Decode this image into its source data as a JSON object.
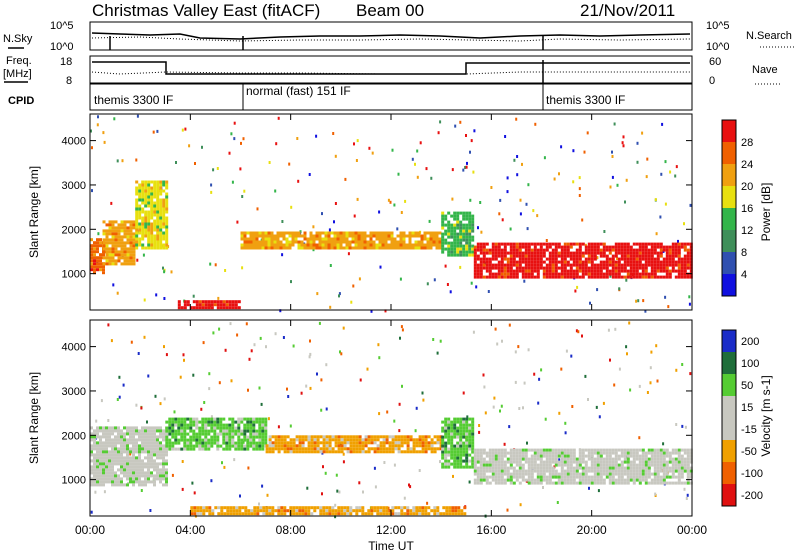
{
  "header": {
    "title": "Christmas Valley East (fitACF)",
    "beam": "Beam 00",
    "date": "21/Nov/2011"
  },
  "noise_panel": {
    "left_label": "N.Sky",
    "right_label": "N.Search",
    "tick_hi": "10^5",
    "tick_lo": "10^0"
  },
  "freq_panel": {
    "left_label_1": "Freq.",
    "left_label_2": "[MHz]",
    "right_label": "Nave",
    "left_ticks": [
      "18",
      "8"
    ],
    "right_ticks": [
      "60",
      "0"
    ]
  },
  "cpid": {
    "label": "CPID",
    "segments": [
      {
        "label": "themis 3300 IF",
        "start_hour": 0
      },
      {
        "label": "normal (fast) 151 IF",
        "start_hour": 6
      },
      {
        "label": "themis 3300 IF",
        "start_hour": 18
      }
    ]
  },
  "colors": {
    "power": [
      "#1010e0",
      "#3050b0",
      "#3f8f5a",
      "#33b54a",
      "#e8e010",
      "#f0a010",
      "#f06000",
      "#e81010"
    ],
    "velocity": [
      "#1a2cc8",
      "#1f6e3a",
      "#55cc33",
      "#c8c8c0",
      "#c8c8c0",
      "#f0a000",
      "#f06000",
      "#e01010"
    ]
  },
  "chart_data": [
    {
      "type": "heatmap",
      "parameter": "Power",
      "ylabel": "Slant Range [km]",
      "ylim": [
        180,
        4600
      ],
      "yticks": [
        1000,
        2000,
        3000,
        4000
      ],
      "xlim": [
        0,
        24
      ],
      "colorbar": {
        "label": "Power [dB]",
        "ticks": [
          "4",
          "8",
          "12",
          "16",
          "20",
          "24",
          "28"
        ]
      },
      "bands": [
        {
          "t0": 0.0,
          "t1": 0.5,
          "r0": 1000,
          "r1": 1800,
          "level": 6
        },
        {
          "t0": 0.5,
          "t1": 1.8,
          "r0": 1200,
          "r1": 2200,
          "level": 5
        },
        {
          "t0": 1.8,
          "t1": 3.0,
          "r0": 1600,
          "r1": 3100,
          "level": 4
        },
        {
          "t0": 6.0,
          "t1": 14.0,
          "r0": 1550,
          "r1": 1950,
          "level": 5
        },
        {
          "t0": 14.0,
          "t1": 15.3,
          "r0": 1400,
          "r1": 2400,
          "level": 3
        },
        {
          "t0": 15.3,
          "t1": 24.0,
          "r0": 900,
          "r1": 1700,
          "level": 7
        },
        {
          "t0": 3.5,
          "t1": 6.0,
          "r0": 250,
          "r1": 400,
          "level": 7
        }
      ]
    },
    {
      "type": "heatmap",
      "parameter": "Velocity",
      "ylabel": "Slant Range [km]",
      "xlabel": "Time UT",
      "ylim": [
        180,
        4600
      ],
      "yticks": [
        1000,
        2000,
        3000,
        4000
      ],
      "xlim": [
        0,
        24
      ],
      "xticks": [
        "00:00",
        "04:00",
        "08:00",
        "12:00",
        "16:00",
        "20:00",
        "00:00"
      ],
      "colorbar": {
        "label": "Velocity [m s-1]",
        "ticks": [
          "200",
          "100",
          "50",
          "15",
          "-15",
          "-50",
          "-100",
          "-200"
        ]
      },
      "bands": [
        {
          "t0": 0.0,
          "t1": 3.0,
          "r0": 900,
          "r1": 2200,
          "level": 3
        },
        {
          "t0": 3.0,
          "t1": 7.0,
          "r0": 1700,
          "r1": 2400,
          "level": 2
        },
        {
          "t0": 7.0,
          "t1": 14.0,
          "r0": 1600,
          "r1": 2000,
          "level": 5
        },
        {
          "t0": 14.0,
          "t1": 15.3,
          "r0": 1300,
          "r1": 2400,
          "level": 2
        },
        {
          "t0": 15.3,
          "t1": 24.0,
          "r0": 900,
          "r1": 1700,
          "level": 3
        },
        {
          "t0": 4.0,
          "t1": 15.0,
          "r0": 250,
          "r1": 400,
          "level": 5
        }
      ]
    }
  ]
}
